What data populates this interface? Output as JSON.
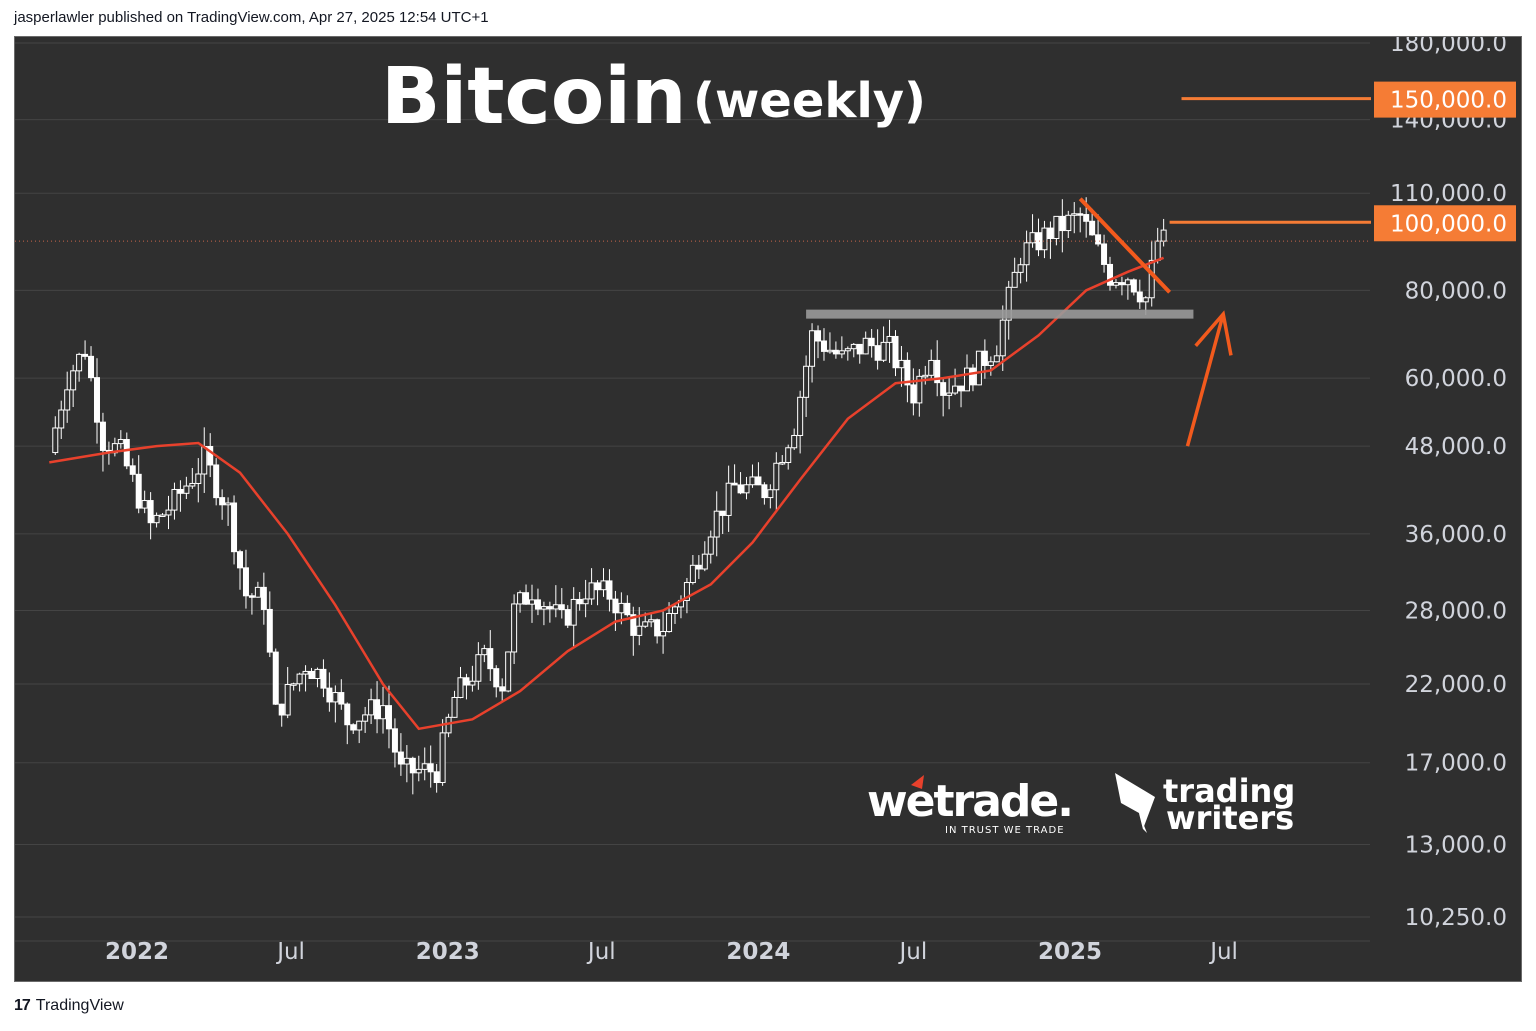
{
  "header": {
    "publish_line": "jasperlawler published on TradingView.com, Apr 27, 2025 12:54 UTC+1"
  },
  "footer": {
    "brand": "TradingView",
    "logo_glyph": "17"
  },
  "chart_data": {
    "type": "candlestick",
    "title": "Bitcoin",
    "subtitle": "(weekly)",
    "y_scale": "log",
    "ylim": [
      10250,
      180000
    ],
    "y_ticks": [
      "180,000.0",
      "140,000.0",
      "110,000.0",
      "80,000.0",
      "60,000.0",
      "48,000.0",
      "36,000.0",
      "28,000.0",
      "22,000.0",
      "17,000.0",
      "13,000.0",
      "10,250.0"
    ],
    "y_tick_values": [
      180000,
      140000,
      110000,
      80000,
      60000,
      48000,
      36000,
      28000,
      22000,
      17000,
      13000,
      10250
    ],
    "x_ticks": [
      {
        "label": "2022",
        "date": "2022-01-01",
        "year": true
      },
      {
        "label": "Jul",
        "date": "2022-07-01",
        "year": false
      },
      {
        "label": "2023",
        "date": "2023-01-01",
        "year": true
      },
      {
        "label": "Jul",
        "date": "2023-07-01",
        "year": false
      },
      {
        "label": "2024",
        "date": "2024-01-01",
        "year": true
      },
      {
        "label": "Jul",
        "date": "2024-07-01",
        "year": false
      },
      {
        "label": "2025",
        "date": "2025-01-01",
        "year": true
      },
      {
        "label": "Jul",
        "date": "2025-07-01",
        "year": false
      }
    ],
    "xlim": [
      "2021-09-20",
      "2025-10-01"
    ],
    "price_path": [
      [
        "2021-09-27",
        47000
      ],
      [
        "2021-10-18",
        60000
      ],
      [
        "2021-11-08",
        66000
      ],
      [
        "2021-11-29",
        49000
      ],
      [
        "2021-12-20",
        47000
      ],
      [
        "2022-01-24",
        37000
      ],
      [
        "2022-02-21",
        40000
      ],
      [
        "2022-03-28",
        46000
      ],
      [
        "2022-04-25",
        39000
      ],
      [
        "2022-05-16",
        29500
      ],
      [
        "2022-06-06",
        29000
      ],
      [
        "2022-06-20",
        20000
      ],
      [
        "2022-07-25",
        23500
      ],
      [
        "2022-08-15",
        22500
      ],
      [
        "2022-09-12",
        19500
      ],
      [
        "2022-10-24",
        20500
      ],
      [
        "2022-11-14",
        16500
      ],
      [
        "2022-12-26",
        16600
      ],
      [
        "2023-01-16",
        21000
      ],
      [
        "2023-02-20",
        24000
      ],
      [
        "2023-03-13",
        22000
      ],
      [
        "2023-03-27",
        28000
      ],
      [
        "2023-04-17",
        30000
      ],
      [
        "2023-05-22",
        27000
      ],
      [
        "2023-06-19",
        30000
      ],
      [
        "2023-07-17",
        29500
      ],
      [
        "2023-08-21",
        26000
      ],
      [
        "2023-09-18",
        26500
      ],
      [
        "2023-10-16",
        30500
      ],
      [
        "2023-11-13",
        37000
      ],
      [
        "2023-12-11",
        42000
      ],
      [
        "2024-01-15",
        41500
      ],
      [
        "2024-02-19",
        51500
      ],
      [
        "2024-03-11",
        69000
      ],
      [
        "2024-04-15",
        64000
      ],
      [
        "2024-05-13",
        67000
      ],
      [
        "2024-06-10",
        66000
      ],
      [
        "2024-07-08",
        57000
      ],
      [
        "2024-07-29",
        66000
      ],
      [
        "2024-08-12",
        58000
      ],
      [
        "2024-09-09",
        60000
      ],
      [
        "2024-10-14",
        67000
      ],
      [
        "2024-11-11",
        90000
      ],
      [
        "2024-12-16",
        97000
      ],
      [
        "2025-01-20",
        102000
      ],
      [
        "2025-02-24",
        84000
      ],
      [
        "2025-03-17",
        84000
      ],
      [
        "2025-04-07",
        78000
      ],
      [
        "2025-04-21",
        94000
      ]
    ],
    "moving_average": [
      [
        "2021-09-20",
        45500
      ],
      [
        "2021-11-29",
        47000
      ],
      [
        "2022-01-24",
        48000
      ],
      [
        "2022-03-14",
        48500
      ],
      [
        "2022-05-02",
        44000
      ],
      [
        "2022-06-27",
        36000
      ],
      [
        "2022-08-22",
        28500
      ],
      [
        "2022-10-17",
        22000
      ],
      [
        "2022-11-28",
        19000
      ],
      [
        "2023-01-30",
        19600
      ],
      [
        "2023-03-27",
        21500
      ],
      [
        "2023-05-22",
        24500
      ],
      [
        "2023-07-17",
        27000
      ],
      [
        "2023-09-11",
        28000
      ],
      [
        "2023-11-06",
        30500
      ],
      [
        "2023-12-25",
        35000
      ],
      [
        "2024-02-19",
        43000
      ],
      [
        "2024-04-15",
        52500
      ],
      [
        "2024-06-10",
        59000
      ],
      [
        "2024-08-05",
        60000
      ],
      [
        "2024-09-30",
        61500
      ],
      [
        "2024-11-25",
        69000
      ],
      [
        "2025-01-20",
        80000
      ],
      [
        "2025-03-10",
        85000
      ],
      [
        "2025-04-21",
        89000
      ]
    ],
    "annotations": {
      "target_levels": [
        {
          "label": "150,000.0",
          "value": 150000,
          "color": "#f57c35"
        },
        {
          "label": "100,000.0",
          "value": 100000,
          "color": "#f57c35"
        }
      ],
      "support_line": {
        "value": 74000,
        "from": "2024-02-26",
        "to": "2025-05-26",
        "color": "#9a9a9a"
      },
      "trendline": {
        "from": [
          "2025-01-13",
          108000
        ],
        "to": [
          "2025-04-28",
          79500
        ],
        "color": "#f25a1d"
      },
      "arrow": {
        "from": [
          "2025-05-19",
          48000
        ],
        "to": [
          "2025-06-30",
          74000
        ],
        "color": "#f25a1d"
      },
      "current_price": 94000
    },
    "colors": {
      "background": "#2f2f2f",
      "grid": "#444444",
      "candles": "#ffffff",
      "moving_average": "#e8412c",
      "current_price_line": "#c6654a",
      "target_level": "#f57c35"
    }
  },
  "logos": {
    "wetrade": {
      "name": "wetrade.",
      "tagline": "IN TRUST WE TRADE"
    },
    "tradingwriters": {
      "line1": "trading",
      "line2": "writers"
    }
  }
}
